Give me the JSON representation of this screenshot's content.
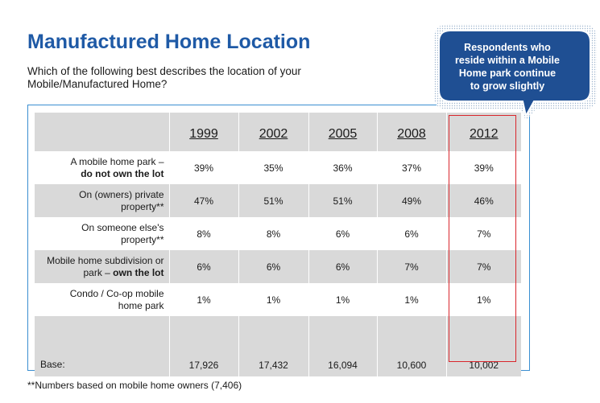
{
  "page": {
    "title": "Manufactured Home Location",
    "subtitle": "Which of the following best describes the location of your Mobile/Manufactured Home?",
    "footnote": "**Numbers based on mobile home owners (7,406)"
  },
  "callout": {
    "lines": [
      "Respondents who",
      "reside within a Mobile",
      "Home park continue",
      "to grow slightly"
    ]
  },
  "colors": {
    "title": "#1f5aa6",
    "callout_fill": "#1f4f93",
    "frame": "#3a8fd1",
    "highlight": "#d9262c",
    "row_shade": "#d9d9d9"
  },
  "table": {
    "years": [
      "1999",
      "2002",
      "2005",
      "2008",
      "2012"
    ],
    "rows": [
      {
        "label_line1": "A mobile home park –",
        "label_line2": "do not own the lot",
        "line2_bold": true,
        "values": [
          "39%",
          "35%",
          "36%",
          "37%",
          "39%"
        ]
      },
      {
        "label_line1": "On (owners) private",
        "label_line2": "property**",
        "line2_bold": false,
        "values": [
          "47%",
          "51%",
          "51%",
          "49%",
          "46%"
        ]
      },
      {
        "label_line1": "On someone else's",
        "label_line2": "property**",
        "line2_bold": false,
        "values": [
          "8%",
          "8%",
          "6%",
          "6%",
          "7%"
        ]
      },
      {
        "label_line1": "Mobile home subdivision or",
        "label_line2_pre": "park – ",
        "label_line2": "own the lot",
        "line2_bold": true,
        "values": [
          "6%",
          "6%",
          "6%",
          "7%",
          "7%"
        ]
      },
      {
        "label_line1": "Condo / Co-op mobile",
        "label_line2": "home park",
        "line2_bold": false,
        "values": [
          "1%",
          "1%",
          "1%",
          "1%",
          "1%"
        ]
      }
    ],
    "base": {
      "label": "Base:",
      "values": [
        "17,926",
        "17,432",
        "16,094",
        "10,600",
        "10,002"
      ]
    }
  }
}
